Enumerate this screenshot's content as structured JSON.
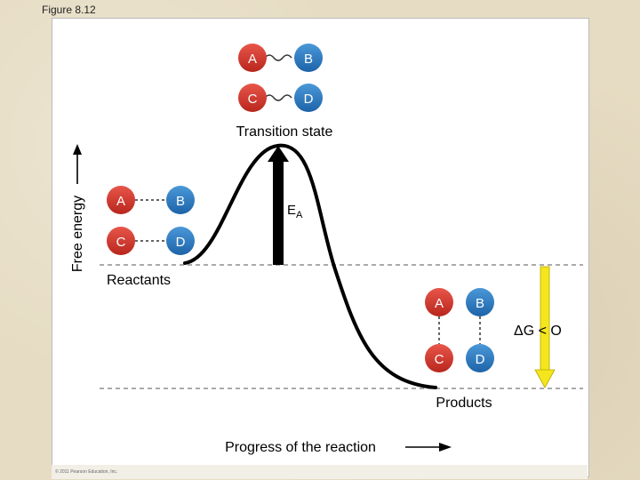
{
  "figure_label": "Figure 8.12",
  "copyright": "© 2011 Pearson Education, Inc.",
  "y_axis_label": "Free energy",
  "x_axis_label": "Progress of the reaction",
  "transition_state_label": "Transition state",
  "reactants_label": "Reactants",
  "products_label": "Products",
  "activation_energy_label": {
    "main": "E",
    "sub": "A"
  },
  "delta_g_label": "ΔG < O",
  "molecules": {
    "A": "A",
    "B": "B",
    "C": "C",
    "D": "D"
  },
  "colors": {
    "molecule_red": "#d2372c",
    "molecule_blue": "#2b7cc4",
    "arrow_yellow": "#f4e61c",
    "curve": "#000000"
  }
}
